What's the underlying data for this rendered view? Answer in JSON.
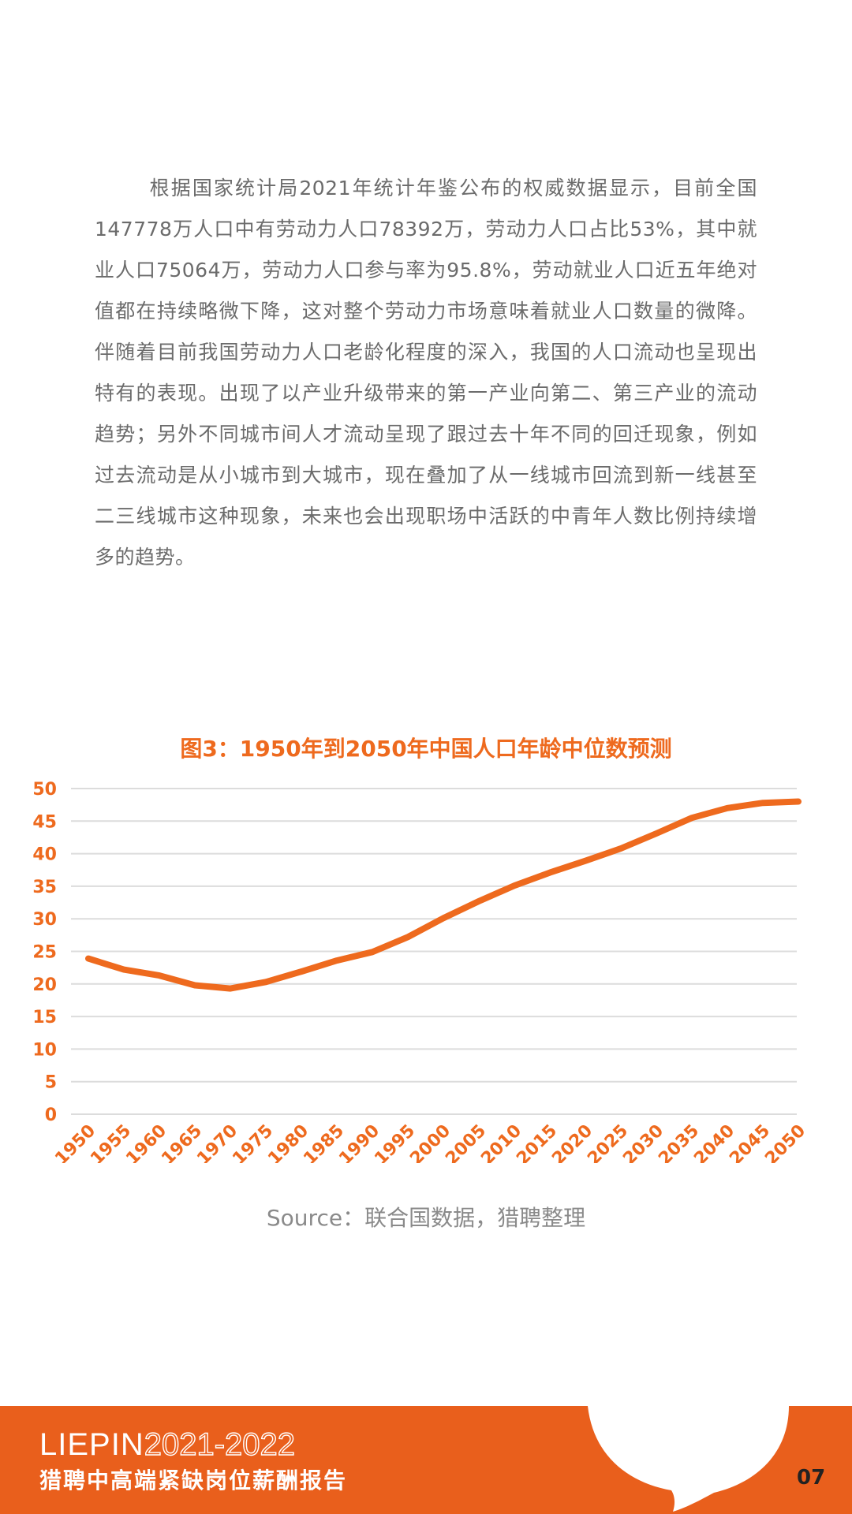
{
  "intro_paragraph": "根据国家统计局2021年统计年鉴公布的权威数据显示，目前全国147778万人口中有劳动力人口78392万，劳动力人口占比53%，其中就业人口75064万，劳动力人口参与率为95.8%，劳动就业人口近五年绝对值都在持续略微下降，这对整个劳动力市场意味着就业人口数量的微降。伴随着目前我国劳动力人口老龄化程度的深入，我国的人口流动也呈现出特有的表现。出现了以产业升级带来的第一产业向第二、第三产业的流动趋势；另外不同城市间人才流动呈现了跟过去十年不同的回迁现象，例如过去流动是从小城市到大城市，现在叠加了从一线城市回流到新一线甚至二三线城市这种现象，未来也会出现职场中活跃的中青年人数比例持续增多的趋势。",
  "chart_data": {
    "type": "line",
    "title": "图3：1950年到2050年中国人口年龄中位数预测",
    "x": [
      "1950",
      "1955",
      "1960",
      "1965",
      "1970",
      "1975",
      "1980",
      "1985",
      "1990",
      "1995",
      "2000",
      "2005",
      "2010",
      "2015",
      "2020",
      "2025",
      "2030",
      "2035",
      "2040",
      "2045",
      "2050"
    ],
    "series": [
      {
        "values": [
          23.9,
          22.2,
          21.3,
          19.8,
          19.3,
          20.3,
          21.9,
          23.6,
          24.9,
          27.2,
          30.1,
          32.7,
          35.1,
          37.1,
          38.9,
          40.8,
          43.1,
          45.5,
          47.0,
          47.8,
          48.0
        ]
      }
    ],
    "yticks": [
      0,
      5,
      10,
      15,
      20,
      25,
      30,
      35,
      40,
      45,
      50
    ],
    "ylim": [
      0,
      50
    ],
    "grid": true,
    "line_color": "#ee6a1e",
    "grid_color": "#dcdcdc"
  },
  "source": "Source：联合国数据，猎聘整理",
  "footer": {
    "brand": "LIEPIN",
    "years": "2021-2022",
    "report_title": "猎聘中高端紧缺岗位薪酬报告",
    "page_number": "07"
  },
  "colors": {
    "accent": "#e95f1c",
    "text": "#6b6b6b"
  }
}
